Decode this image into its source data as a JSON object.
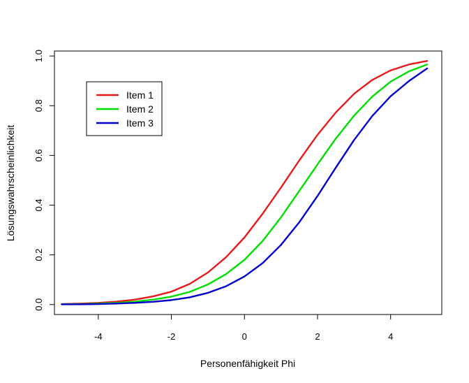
{
  "chart_data": {
    "type": "line",
    "title": "",
    "xlabel": "Personenfähigkeit Phi",
    "ylabel": "Lösungswahrscheinlichkeit",
    "xlim": [
      -5.2,
      5.4
    ],
    "ylim": [
      -0.04,
      1.02
    ],
    "x_ticks": [
      -4,
      -2,
      0,
      2,
      4
    ],
    "x_tick_labels": [
      "-4",
      "-2",
      "0",
      "2",
      "4"
    ],
    "y_ticks": [
      0.0,
      0.2,
      0.4,
      0.6,
      0.8,
      1.0
    ],
    "y_tick_labels": [
      "0.0",
      "0.2",
      "0.4",
      "0.6",
      "0.8",
      "1.0"
    ],
    "grid": false,
    "legend_position": "top-left",
    "x": [
      -5,
      -4.5,
      -4,
      -3.5,
      -3,
      -2.5,
      -2,
      -1.5,
      -1,
      -0.5,
      0,
      0.5,
      1,
      1.5,
      2,
      2.5,
      3,
      3.5,
      4,
      4.5,
      5
    ],
    "series": [
      {
        "name": "Item 1",
        "color": "#e41a1c",
        "values": [
          0.002,
          0.004,
          0.007,
          0.012,
          0.02,
          0.033,
          0.052,
          0.083,
          0.129,
          0.191,
          0.27,
          0.366,
          0.471,
          0.58,
          0.683,
          0.773,
          0.848,
          0.904,
          0.942,
          0.966,
          0.98
        ]
      },
      {
        "name": "Item 2",
        "color": "#00dd00",
        "values": [
          0.001,
          0.002,
          0.004,
          0.007,
          0.012,
          0.02,
          0.032,
          0.051,
          0.081,
          0.123,
          0.18,
          0.256,
          0.351,
          0.457,
          0.564,
          0.668,
          0.76,
          0.837,
          0.897,
          0.938,
          0.966
        ]
      },
      {
        "name": "Item 3",
        "color": "#0000cc",
        "values": [
          0.001,
          0.001,
          0.002,
          0.004,
          0.007,
          0.011,
          0.018,
          0.029,
          0.047,
          0.074,
          0.113,
          0.167,
          0.24,
          0.331,
          0.437,
          0.551,
          0.662,
          0.759,
          0.838,
          0.899,
          0.95
        ]
      }
    ]
  }
}
